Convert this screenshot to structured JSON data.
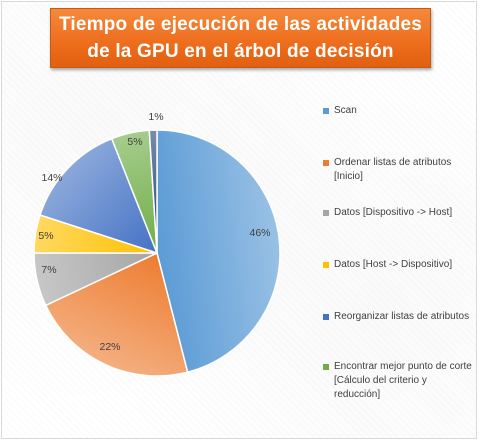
{
  "chart_data": {
    "type": "pie",
    "title": "Tiempo de ejecución de las actividades de la GPU en el árbol de decisión",
    "categories": [
      "Scan",
      "Ordenar listas de atributos [Inicio]",
      "Datos [Dispositivo -> Host]",
      "Datos [Host -> Dispositivo]",
      "Reorganizar listas de atributos",
      "Encontrar mejor punto de corte [Cálculo del criterio y reducción]",
      ""
    ],
    "values": [
      46,
      22,
      7,
      5,
      14,
      5,
      1
    ],
    "data_labels": [
      "46%",
      "22%",
      "7%",
      "5%",
      "14%",
      "5%",
      "1%"
    ],
    "colors": [
      "#5b9bd5",
      "#ed7d31",
      "#a5a5a5",
      "#ffc000",
      "#4472c4",
      "#70ad47",
      "#264478"
    ],
    "legend_position": "right"
  }
}
